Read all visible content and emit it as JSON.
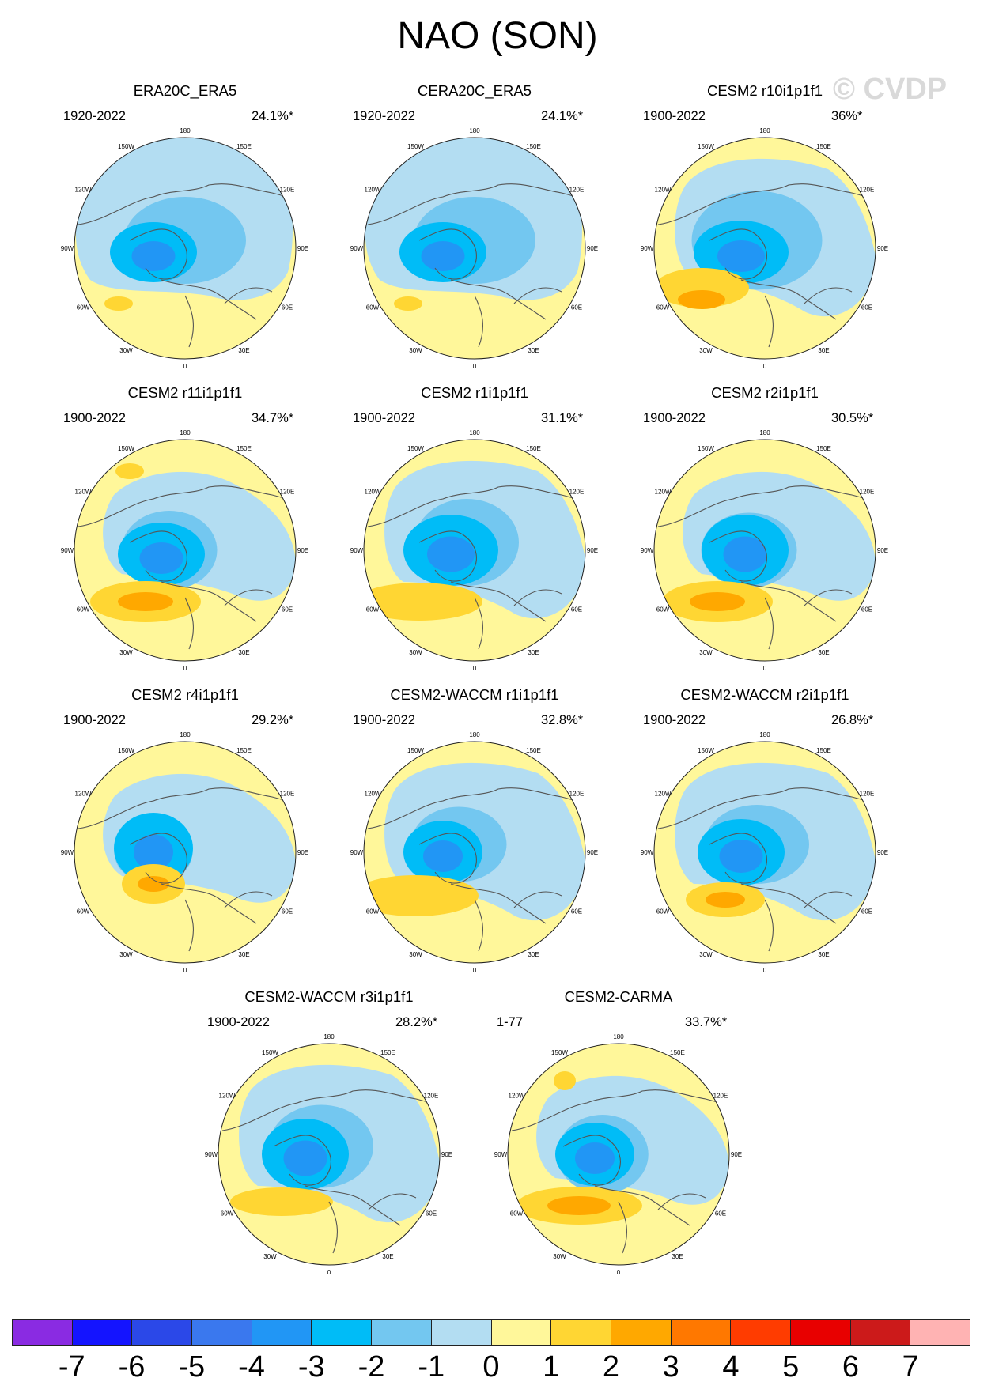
{
  "title": "NAO (SON)",
  "watermark": "© CVDP",
  "lon_labels": [
    "180",
    "150E",
    "120E",
    "90E",
    "60E",
    "30E",
    "0",
    "30W",
    "60W",
    "90W",
    "120W",
    "150W"
  ],
  "colors": {
    "m7": "#8a2be2",
    "m6": "#1414ff",
    "m5": "#2b48e8",
    "m4": "#3a78ee",
    "m3": "#2196f5",
    "m2": "#00bcf7",
    "m1": "#73c7f0",
    "z_neg": "#b3ddf2",
    "z_pos": "#fff79a",
    "p1": "#ffd633",
    "p2": "#ffa800",
    "p3": "#ff7800",
    "p4": "#ff3c00",
    "p5": "#e80000",
    "p6": "#cc1a1a",
    "p7": "#ffb3b3",
    "coast": "#555555"
  },
  "panels": [
    {
      "title": "ERA20C_ERA5",
      "period": "1920-2022",
      "pct": "24.1%*"
    },
    {
      "title": "CERA20C_ERA5",
      "period": "1920-2022",
      "pct": "24.1%*"
    },
    {
      "title": "CESM2 r10i1p1f1",
      "period": "1900-2022",
      "pct": "36%*"
    },
    {
      "title": "CESM2 r11i1p1f1",
      "period": "1900-2022",
      "pct": "34.7%*"
    },
    {
      "title": "CESM2 r1i1p1f1",
      "period": "1900-2022",
      "pct": "31.1%*"
    },
    {
      "title": "CESM2 r2i1p1f1",
      "period": "1900-2022",
      "pct": "30.5%*"
    },
    {
      "title": "CESM2 r4i1p1f1",
      "period": "1900-2022",
      "pct": "29.2%*"
    },
    {
      "title": "CESM2-WACCM r1i1p1f1",
      "period": "1900-2022",
      "pct": "32.8%*"
    },
    {
      "title": "CESM2-WACCM r2i1p1f1",
      "period": "1900-2022",
      "pct": "26.8%*"
    },
    {
      "title": "CESM2-WACCM r3i1p1f1",
      "period": "1900-2022",
      "pct": "28.2%*"
    },
    {
      "title": "CESM2-CARMA",
      "period": "1-77",
      "pct": "33.7%*"
    }
  ],
  "colorbar": {
    "labels": [
      "-7",
      "-6",
      "-5",
      "-4",
      "-3",
      "-2",
      "-1",
      "0",
      "1",
      "2",
      "3",
      "4",
      "5",
      "6",
      "7"
    ],
    "colors": [
      "#8a2be2",
      "#1414ff",
      "#2b48e8",
      "#3a78ee",
      "#2196f5",
      "#00bcf7",
      "#73c7f0",
      "#b3ddf2",
      "#fff79a",
      "#ffd633",
      "#ffa800",
      "#ff7800",
      "#ff3c00",
      "#e80000",
      "#cc1a1a",
      "#ffb3b3"
    ]
  }
}
